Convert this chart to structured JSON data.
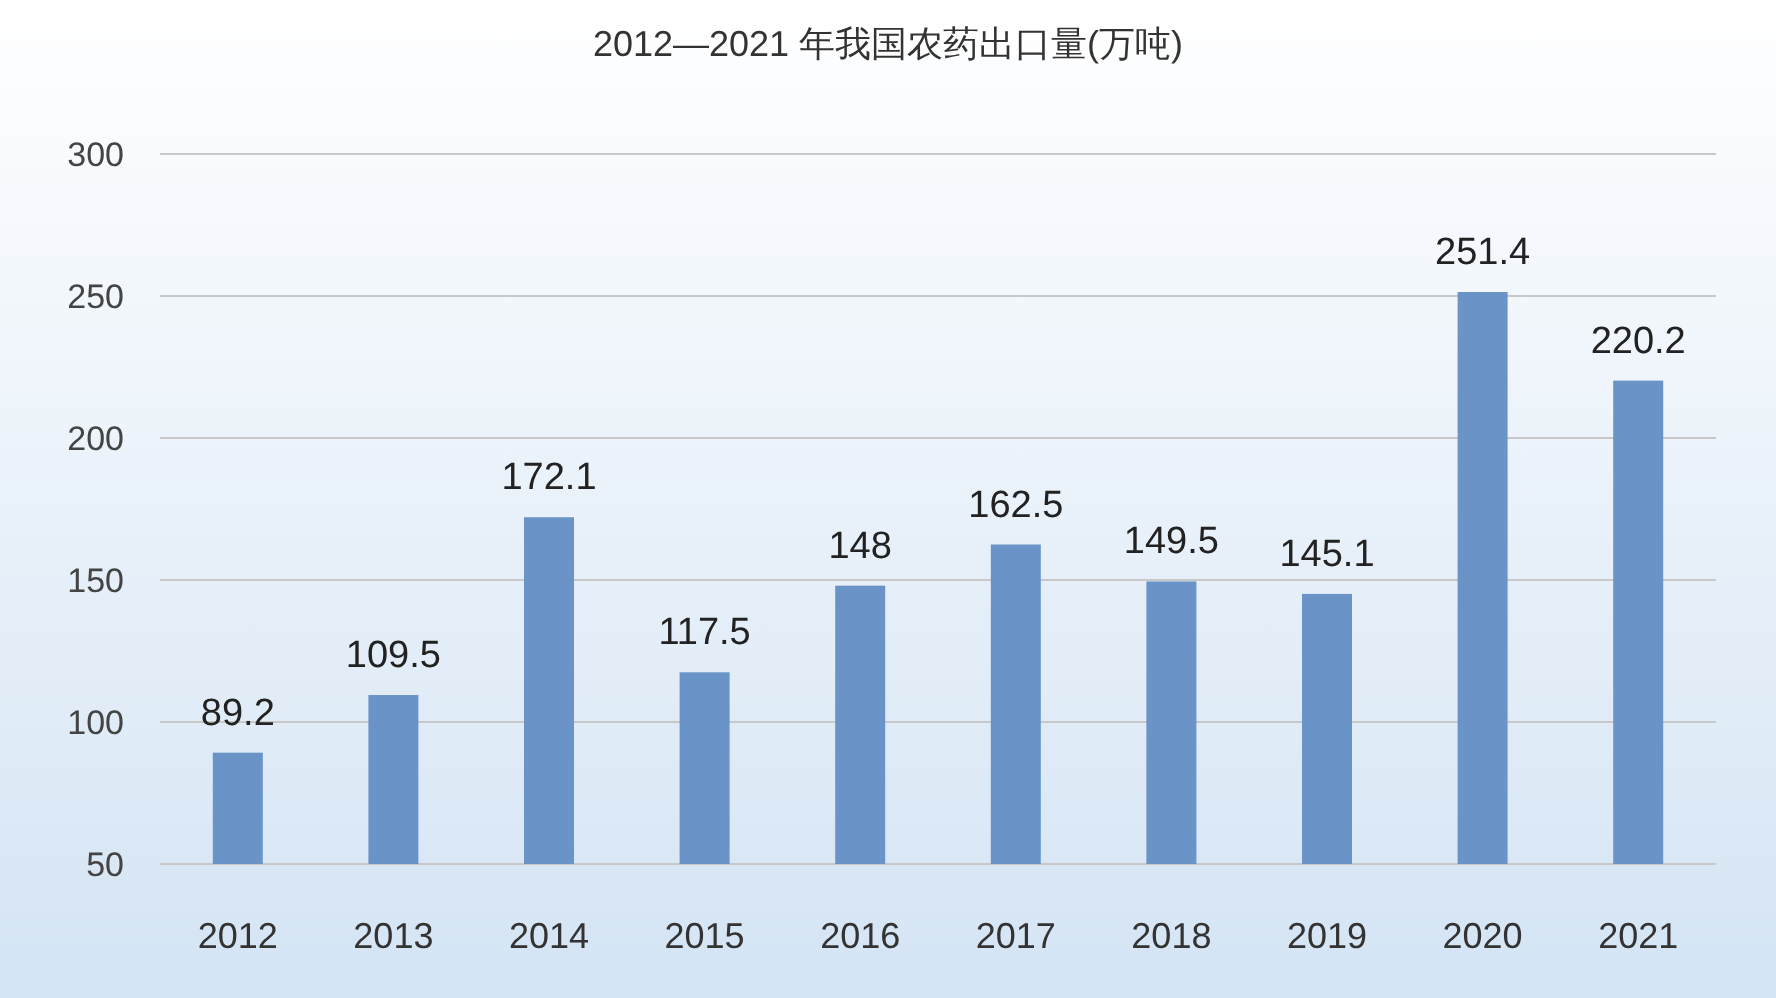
{
  "chart_data": {
    "type": "bar",
    "title": "2012—2021 年我国农药出口量(万吨)",
    "categories": [
      "2012",
      "2013",
      "2014",
      "2015",
      "2016",
      "2017",
      "2018",
      "2019",
      "2020",
      "2021"
    ],
    "values": [
      89.2,
      109.5,
      172.1,
      117.5,
      148,
      162.5,
      149.5,
      145.1,
      251.4,
      220.2
    ],
    "color": "#6a94c8",
    "ylim": [
      50,
      300
    ],
    "yticks": [
      50,
      100,
      150,
      200,
      250,
      300
    ],
    "grid": "y",
    "data_labels": true
  }
}
